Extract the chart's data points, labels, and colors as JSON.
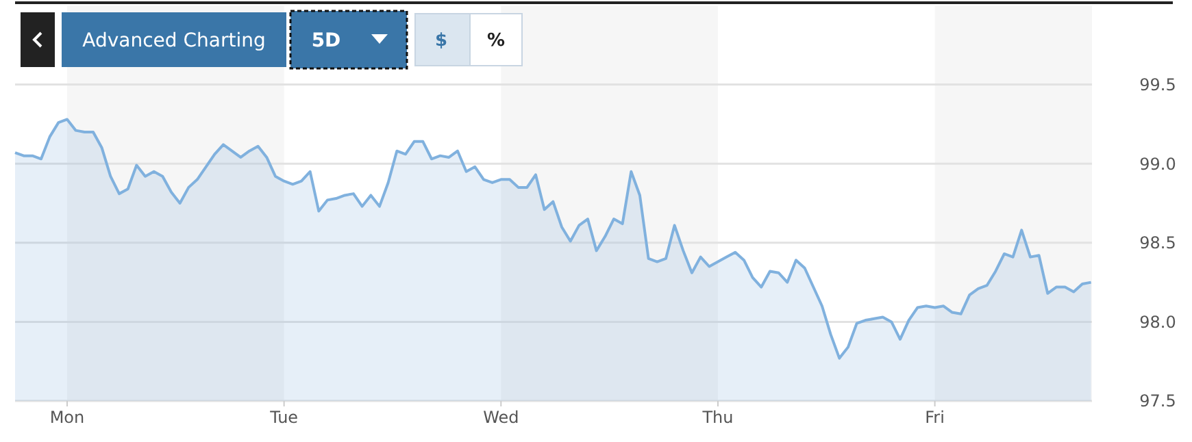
{
  "chart_data": {
    "type": "area",
    "categories": [
      null,
      null,
      null,
      null,
      null,
      null,
      "Mon",
      null,
      null,
      null,
      null,
      null,
      null,
      null,
      null,
      null,
      null,
      null,
      null,
      null,
      null,
      null,
      null,
      null,
      null,
      null,
      null,
      null,
      null,
      null,
      null,
      "Tue",
      null,
      null,
      null,
      null,
      null,
      null,
      null,
      null,
      null,
      null,
      null,
      null,
      null,
      null,
      null,
      null,
      null,
      null,
      null,
      null,
      null,
      null,
      null,
      null,
      "Wed",
      null,
      null,
      null,
      null,
      null,
      null,
      null,
      null,
      null,
      null,
      null,
      null,
      null,
      null,
      null,
      null,
      null,
      null,
      null,
      null,
      null,
      null,
      null,
      null,
      "Thu",
      null,
      null,
      null,
      null,
      null,
      null,
      null,
      null,
      null,
      null,
      null,
      null,
      null,
      null,
      null,
      null,
      null,
      null,
      null,
      null,
      null,
      null,
      null,
      null,
      "Fri",
      null,
      null,
      null,
      null,
      null,
      null,
      null,
      null,
      null,
      null,
      null,
      null,
      null,
      null,
      null,
      null,
      null,
      null
    ],
    "ylim": [
      97.5,
      100
    ],
    "yticks": [
      97.5,
      {
        "value": 98,
        "label": "98.0"
      },
      98.5,
      {
        "value": 99,
        "label": "99.0"
      },
      99.5
    ],
    "grid": "y",
    "annotations": [
      "Advanced Charting",
      "5D",
      "$",
      "%"
    ],
    "series": [
      {
        "color": "#80b1de",
        "values": [
          99.07,
          99.05,
          99.05,
          99.03,
          99.17,
          99.26,
          99.28,
          99.21,
          99.2,
          99.2,
          99.1,
          98.92,
          98.81,
          98.84,
          98.99,
          98.92,
          98.95,
          98.92,
          98.82,
          98.75,
          98.85,
          98.9,
          98.98,
          99.06,
          99.12,
          99.08,
          99.04,
          99.08,
          99.11,
          99.04,
          98.92,
          98.89,
          98.87,
          98.89,
          98.95,
          98.7,
          98.77,
          98.78,
          98.8,
          98.81,
          98.73,
          98.8,
          98.73,
          98.88,
          99.08,
          99.06,
          99.14,
          99.14,
          99.03,
          99.05,
          99.04,
          99.08,
          98.95,
          98.98,
          98.9,
          98.88,
          98.9,
          98.9,
          98.85,
          98.85,
          98.93,
          98.71,
          98.76,
          98.6,
          98.51,
          98.61,
          98.65,
          98.45,
          98.54,
          98.65,
          98.62,
          98.95,
          98.8,
          98.4,
          98.38,
          98.4,
          98.61,
          98.45,
          98.31,
          98.41,
          98.35,
          98.38,
          98.41,
          98.44,
          98.39,
          98.28,
          98.22,
          98.32,
          98.31,
          98.25,
          98.39,
          98.34,
          98.22,
          98.1,
          97.92,
          97.77,
          97.84,
          97.99,
          98.01,
          98.02,
          98.03,
          98,
          97.89,
          98.01,
          98.09,
          98.1,
          98.09,
          98.1,
          98.06,
          98.05,
          98.17,
          98.21,
          98.23,
          98.32,
          98.43,
          98.41,
          98.58,
          98.41,
          98.42,
          98.18,
          98.22,
          98.22,
          98.19,
          98.24,
          98.25
        ]
      }
    ]
  }
}
